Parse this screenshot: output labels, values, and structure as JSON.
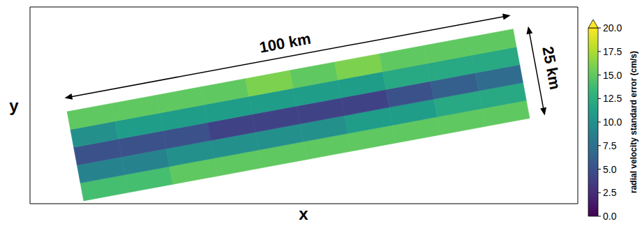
{
  "chart_data": {
    "type": "heatmap",
    "x_label": "x",
    "y_label": "y",
    "tick_labels": false,
    "annotations": {
      "along": {
        "text": "100 km",
        "length_km": 100
      },
      "across": {
        "text": "25 km",
        "length_km": 25
      }
    },
    "along_km": [
      5,
      15,
      25,
      35,
      45,
      55,
      65,
      75,
      85,
      95
    ],
    "across_km": [
      -10,
      -5,
      0,
      5,
      10
    ],
    "cells": [
      [
        14,
        14,
        15,
        15,
        15,
        15,
        15,
        15,
        15,
        15
      ],
      [
        9,
        9,
        10,
        10,
        10,
        10,
        11,
        11,
        12,
        12
      ],
      [
        5,
        5,
        5,
        4,
        4,
        4,
        4,
        5,
        6,
        7
      ],
      [
        10,
        11,
        11,
        11,
        11,
        11,
        11,
        12,
        12,
        12
      ],
      [
        15,
        15,
        15,
        15,
        16,
        15,
        16,
        15,
        15,
        15
      ]
    ],
    "colorbar": {
      "label": "radial velocity standard error (cm/s)",
      "range": [
        0,
        20
      ],
      "ticks": [
        {
          "value": 0,
          "label": "0.0"
        },
        {
          "value": 2.5,
          "label": "2.5"
        },
        {
          "value": 5,
          "label": "5.0"
        },
        {
          "value": 7.5,
          "label": "7.5"
        },
        {
          "value": 10,
          "label": "10.0"
        },
        {
          "value": 12.5,
          "label": "12.5"
        },
        {
          "value": 15,
          "label": "15.0"
        },
        {
          "value": 17.5,
          "label": "17.5"
        },
        {
          "value": 20,
          "label": "20.0"
        }
      ],
      "colors": [
        "#440154",
        "#482878",
        "#3e4989",
        "#31688e",
        "#26828e",
        "#1f9e89",
        "#35b779",
        "#6ece58",
        "#b5de2b",
        "#fde725"
      ]
    }
  }
}
